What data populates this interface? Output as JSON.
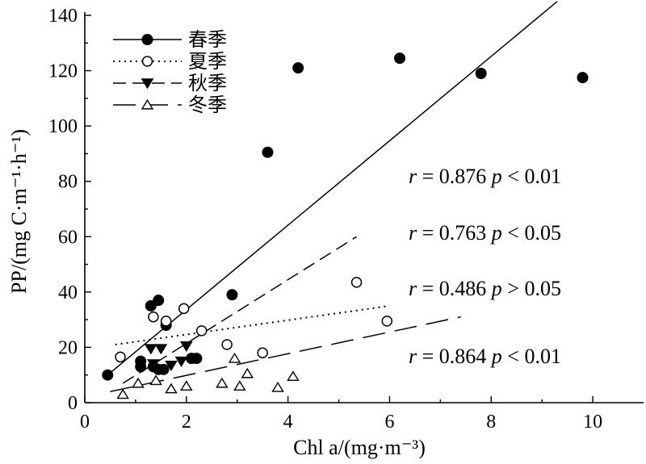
{
  "chart_data": {
    "type": "scatter",
    "xlabel": "Chl a/(mg·m⁻³)",
    "ylabel": "PP/(mg C·m⁻¹·h⁻¹)",
    "xlim": [
      0,
      11
    ],
    "ylim": [
      0,
      140
    ],
    "xticks": [
      0,
      2,
      4,
      6,
      8,
      10
    ],
    "yticks": [
      0,
      20,
      40,
      60,
      80,
      100,
      120,
      140
    ],
    "legend_position": "top-left",
    "series": [
      {
        "name": "春季",
        "marker": "filled-circle",
        "line_style": "solid",
        "points": [
          [
            0.45,
            10
          ],
          [
            1.1,
            15
          ],
          [
            1.1,
            13
          ],
          [
            1.3,
            35
          ],
          [
            1.35,
            13
          ],
          [
            1.45,
            37
          ],
          [
            1.45,
            12
          ],
          [
            1.55,
            12
          ],
          [
            1.6,
            28
          ],
          [
            2.1,
            16
          ],
          [
            2.2,
            16
          ],
          [
            2.9,
            39
          ],
          [
            3.6,
            90.5
          ],
          [
            4.2,
            121
          ],
          [
            6.2,
            124.5
          ],
          [
            7.8,
            119
          ],
          [
            9.8,
            117.5
          ]
        ],
        "fit": [
          [
            0.45,
            10
          ],
          [
            9.3,
            145
          ]
        ]
      },
      {
        "name": "夏季",
        "marker": "open-circle",
        "line_style": "dotted",
        "points": [
          [
            0.7,
            16.5
          ],
          [
            1.35,
            31
          ],
          [
            1.6,
            29.5
          ],
          [
            1.95,
            34
          ],
          [
            2.3,
            26
          ],
          [
            2.8,
            21
          ],
          [
            3.5,
            18
          ],
          [
            5.35,
            43.5
          ],
          [
            5.95,
            29.5
          ]
        ],
        "fit": [
          [
            0.6,
            21
          ],
          [
            6.0,
            35
          ]
        ]
      },
      {
        "name": "秋季",
        "marker": "filled-triangle-down",
        "line_style": "dashed",
        "points": [
          [
            1.3,
            19.5
          ],
          [
            1.35,
            14
          ],
          [
            1.5,
            19.5
          ],
          [
            1.7,
            13.5
          ],
          [
            1.9,
            15
          ],
          [
            2.0,
            20.5
          ]
        ],
        "fit": [
          [
            0.75,
            7
          ],
          [
            5.35,
            60
          ]
        ]
      },
      {
        "name": "冬季",
        "marker": "open-triangle-up",
        "line_style": "long-dashed",
        "points": [
          [
            0.75,
            3
          ],
          [
            1.05,
            7
          ],
          [
            1.4,
            8
          ],
          [
            1.7,
            5
          ],
          [
            2.0,
            6
          ],
          [
            2.7,
            7
          ],
          [
            2.95,
            16
          ],
          [
            3.05,
            6
          ],
          [
            3.2,
            10.5
          ],
          [
            3.8,
            5.5
          ],
          [
            4.1,
            9.5
          ]
        ],
        "fit": [
          [
            0.5,
            4
          ],
          [
            7.4,
            31
          ]
        ]
      }
    ],
    "annotations": [
      {
        "r_label": "r",
        "r_value": "= 0.876",
        "p_label": "p",
        "p_value": "< 0.01"
      },
      {
        "r_label": "r",
        "r_value": "= 0.763",
        "p_label": "p",
        "p_value": "< 0.05"
      },
      {
        "r_label": "r",
        "r_value": "= 0.486",
        "p_label": "p",
        "p_value": "> 0.05"
      },
      {
        "r_label": "r",
        "r_value": "= 0.864",
        "p_label": "p",
        "p_value": "< 0.01"
      }
    ]
  }
}
